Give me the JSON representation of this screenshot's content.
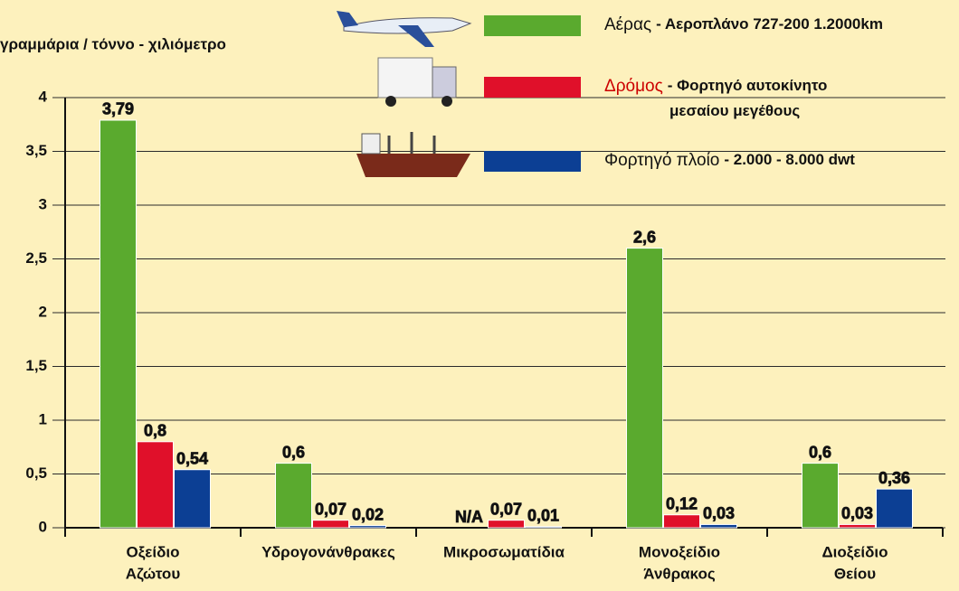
{
  "chart_data": {
    "type": "bar",
    "y_axis_label": "γραμμάρια / τόννο - χιλιόμετρο",
    "categories": [
      [
        "Οξείδιο",
        "Αζώτου"
      ],
      [
        "Υδρογονάνθρακες"
      ],
      [
        "Μικροσωματίδια"
      ],
      [
        "Μονοξείδιο",
        "Άνθρακος"
      ],
      [
        "Διοξείδιο",
        "Θείου"
      ]
    ],
    "series": [
      {
        "name": "Αέρας",
        "description_lines": [
          "- Αεροπλάνο 727-200 1.2000km"
        ],
        "color": "#5aaa2e",
        "values": [
          3.79,
          0.6,
          null,
          2.6,
          0.6
        ],
        "value_labels": [
          "3,79",
          "0,6",
          "N/A",
          "2,6",
          "0,6"
        ]
      },
      {
        "name": "Δρόμος",
        "description_lines": [
          "- Φορτηγό αυτοκίνητο",
          "μεσαίου μεγέθους"
        ],
        "color": "#e0102a",
        "values": [
          0.8,
          0.07,
          0.07,
          0.12,
          0.03
        ],
        "value_labels": [
          "0,8",
          "0,07",
          "0,07",
          "0,12",
          "0,03"
        ]
      },
      {
        "name": "Φορτηγό πλοίο",
        "description_lines": [
          "- 2.000 - 8.000 dwt"
        ],
        "color": "#0c3f94",
        "values": [
          0.54,
          0.02,
          0.01,
          0.03,
          0.36
        ],
        "value_labels": [
          "0,54",
          "0,02",
          "0,01",
          "0,03",
          "0,36"
        ]
      }
    ],
    "ylim": [
      0,
      4
    ],
    "yticks": [
      0,
      {
        "value": 0.5,
        "label": "0,5"
      },
      1,
      {
        "value": 1.5,
        "label": "1,5"
      },
      2,
      {
        "value": 2.5,
        "label": "2,5"
      },
      3,
      {
        "value": 3.5,
        "label": "3,5"
      },
      4
    ],
    "grid": true
  }
}
